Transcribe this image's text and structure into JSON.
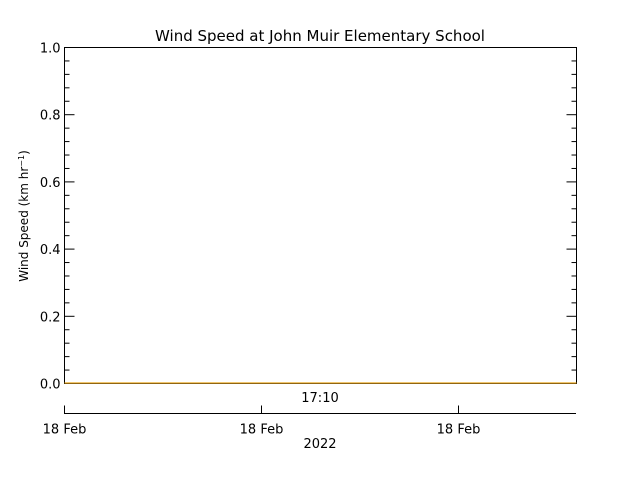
{
  "chart_data": {
    "type": "line",
    "title": "Wind Speed at John Muir Elementary School",
    "ylabel": "Wind Speed (km hr",
    "ylabel_sup": "−1",
    "ylabel_close": ")",
    "ylim": [
      0.0,
      1.0
    ],
    "yticks": [
      "0.0",
      "0.2",
      "0.4",
      "0.6",
      "0.8",
      "1.0"
    ],
    "ytick_values": [
      0.0,
      0.2,
      0.4,
      0.6,
      0.8,
      1.0
    ],
    "x_time_label": "17:10",
    "x_date_ticks": [
      "18 Feb",
      "18 Feb",
      "18 Feb"
    ],
    "x_year_label": "2022",
    "grid": false,
    "series": [
      {
        "color": "#e8a31a",
        "values": [
          0.0,
          0.0
        ]
      }
    ]
  }
}
